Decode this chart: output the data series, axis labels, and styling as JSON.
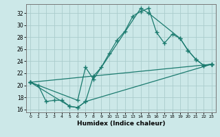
{
  "xlabel": "Humidex (Indice chaleur)",
  "bg_color": "#cce8e8",
  "line_color": "#1a7a6e",
  "grid_color": "#aacccc",
  "xlim": [
    -0.5,
    23.5
  ],
  "ylim": [
    15.5,
    33.5
  ],
  "xticks": [
    0,
    1,
    2,
    3,
    4,
    5,
    6,
    7,
    8,
    9,
    10,
    11,
    12,
    13,
    14,
    15,
    16,
    17,
    18,
    19,
    20,
    21,
    22,
    23
  ],
  "yticks": [
    16,
    18,
    20,
    22,
    24,
    26,
    28,
    30,
    32
  ],
  "line1_x": [
    0,
    1,
    2,
    3,
    4,
    5,
    6,
    7,
    8,
    9,
    10,
    11,
    12,
    13,
    14,
    15,
    16,
    17,
    18,
    19,
    20,
    21,
    22,
    23
  ],
  "line1_y": [
    20.5,
    20.0,
    17.3,
    17.5,
    17.5,
    16.5,
    16.3,
    17.3,
    21.5,
    23.0,
    25.3,
    27.5,
    29.0,
    31.5,
    32.3,
    32.8,
    28.8,
    27.0,
    28.5,
    27.8,
    25.8,
    24.3,
    23.3,
    23.5
  ],
  "line2_x": [
    0,
    6,
    7,
    8,
    14,
    15,
    19,
    20,
    21,
    22,
    23
  ],
  "line2_y": [
    20.5,
    17.5,
    23.0,
    21.0,
    32.8,
    32.0,
    27.8,
    25.8,
    24.3,
    23.3,
    23.5
  ],
  "line3_x": [
    0,
    5,
    6,
    7,
    23
  ],
  "line3_y": [
    20.5,
    16.5,
    16.3,
    17.3,
    23.5
  ],
  "line4_x": [
    0,
    23
  ],
  "line4_y": [
    20.5,
    23.5
  ],
  "marker": "+",
  "markersize": 4,
  "linewidth": 0.9
}
